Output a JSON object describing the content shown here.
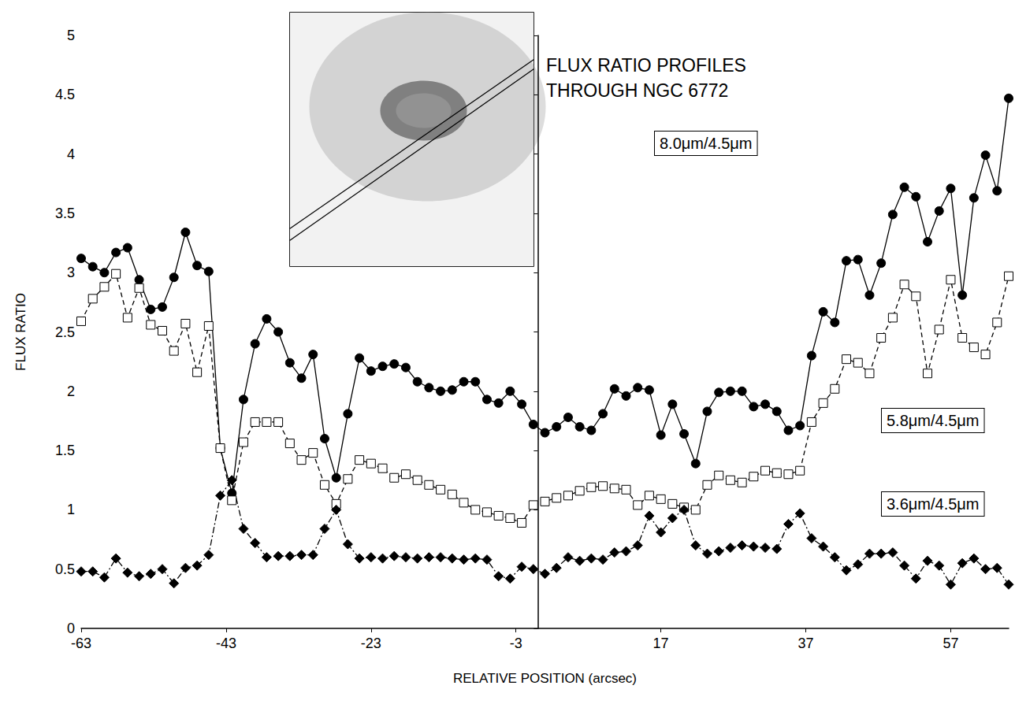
{
  "chart_data": {
    "type": "line",
    "title": "FLUX RATIO PROFILES THROUGH NGC 6772",
    "x_label": "RELATIVE POSITION (arcsec)",
    "y_label": "FLUX RATIO",
    "x": [
      -63,
      -61.4,
      -59.8,
      -58.2,
      -56.6,
      -55,
      -53.4,
      -51.8,
      -50.2,
      -48.6,
      -47,
      -45.4,
      -43.8,
      -42.2,
      -40.6,
      -39,
      -37.4,
      -35.8,
      -34.2,
      -32.6,
      -31,
      -29.4,
      -27.8,
      -26.2,
      -24.6,
      -23,
      -21.4,
      -19.8,
      -18.2,
      -16.6,
      -15,
      -13.4,
      -11.8,
      -10.2,
      -8.6,
      -7,
      -5.4,
      -3.8,
      -2.2,
      -0.6,
      1,
      2.6,
      4.2,
      5.8,
      7.4,
      9,
      10.6,
      12.2,
      13.8,
      15.4,
      17,
      18.6,
      20.2,
      21.8,
      23.4,
      25,
      26.6,
      28.2,
      29.8,
      31.4,
      33,
      34.6,
      36.2,
      37.8,
      39.4,
      41,
      42.6,
      44.2,
      45.8,
      47.4,
      49,
      50.6,
      52.2,
      53.8,
      55.4,
      57,
      58.6,
      60.2,
      61.8,
      63.4,
      65
    ],
    "series": [
      {
        "name": "8.0μm/4.5μm",
        "color": "#000000",
        "marker": "circle",
        "line_style": "solid",
        "values": [
          3.12,
          3.05,
          3.0,
          3.17,
          3.21,
          2.94,
          2.69,
          2.71,
          2.96,
          3.34,
          3.06,
          3.01,
          1.52,
          1.14,
          1.93,
          2.4,
          2.61,
          2.5,
          2.24,
          2.11,
          2.31,
          1.6,
          1.27,
          1.81,
          2.28,
          2.17,
          2.21,
          2.23,
          2.2,
          2.08,
          2.03,
          2.0,
          2.01,
          2.08,
          2.08,
          1.93,
          1.9,
          2.0,
          1.89,
          1.72,
          1.65,
          1.7,
          1.78,
          1.7,
          1.67,
          1.81,
          2.02,
          1.96,
          2.03,
          2.01,
          1.63,
          1.89,
          1.64,
          1.39,
          1.83,
          1.99,
          2.0,
          2.0,
          1.87,
          1.89,
          1.83,
          1.67,
          1.71,
          2.3,
          2.67,
          2.58,
          3.1,
          3.11,
          2.81,
          3.08,
          3.49,
          3.72,
          3.64,
          3.26,
          3.52,
          3.71,
          2.81,
          3.63,
          3.99,
          3.69,
          4.47
        ]
      },
      {
        "name": "5.8μm/4.5μm",
        "color": "#000000",
        "marker": "square_open",
        "line_style": "dashed",
        "values": [
          2.59,
          2.78,
          2.88,
          2.99,
          2.62,
          2.87,
          2.56,
          2.51,
          2.34,
          2.57,
          2.16,
          2.55,
          1.52,
          1.08,
          1.57,
          1.74,
          1.74,
          1.74,
          1.56,
          1.42,
          1.48,
          1.21,
          1.05,
          1.26,
          1.42,
          1.39,
          1.35,
          1.27,
          1.3,
          1.25,
          1.21,
          1.17,
          1.13,
          1.06,
          1.0,
          0.98,
          0.95,
          0.93,
          0.89,
          1.04,
          1.07,
          1.1,
          1.12,
          1.16,
          1.19,
          1.2,
          1.18,
          1.17,
          1.04,
          1.12,
          1.09,
          1.05,
          1.02,
          1.0,
          1.21,
          1.29,
          1.25,
          1.23,
          1.28,
          1.33,
          1.31,
          1.3,
          1.33,
          1.74,
          1.9,
          2.02,
          2.27,
          2.24,
          2.15,
          2.45,
          2.62,
          2.9,
          2.8,
          2.15,
          2.52,
          2.94,
          2.45,
          2.37,
          2.31,
          2.58,
          2.97
        ]
      },
      {
        "name": "3.6μm/4.5μm",
        "color": "#000000",
        "marker": "diamond",
        "line_style": "dashdot",
        "values": [
          0.48,
          0.48,
          0.43,
          0.59,
          0.47,
          0.44,
          0.46,
          0.5,
          0.38,
          0.51,
          0.53,
          0.62,
          1.12,
          1.25,
          0.84,
          0.72,
          0.6,
          0.61,
          0.61,
          0.62,
          0.62,
          0.84,
          1.0,
          0.71,
          0.59,
          0.6,
          0.59,
          0.61,
          0.6,
          0.59,
          0.6,
          0.6,
          0.59,
          0.58,
          0.59,
          0.58,
          0.44,
          0.42,
          0.52,
          0.5,
          0.46,
          0.51,
          0.6,
          0.57,
          0.59,
          0.58,
          0.64,
          0.65,
          0.7,
          0.95,
          0.81,
          0.93,
          1.0,
          0.7,
          0.63,
          0.65,
          0.68,
          0.7,
          0.69,
          0.68,
          0.67,
          0.88,
          0.97,
          0.76,
          0.69,
          0.6,
          0.49,
          0.54,
          0.63,
          0.63,
          0.64,
          0.53,
          0.42,
          0.57,
          0.53,
          0.37,
          0.55,
          0.59,
          0.5,
          0.51,
          0.37
        ]
      }
    ],
    "xlim": [
      -63,
      65
    ],
    "xticks": [
      -63,
      -43,
      -23,
      -3,
      17,
      37,
      57
    ],
    "ylim": [
      0,
      5
    ],
    "yticks": [
      0,
      0.5,
      1,
      1.5,
      2,
      2.5,
      3,
      3.5,
      4,
      4.5,
      5
    ],
    "grid": false
  }
}
